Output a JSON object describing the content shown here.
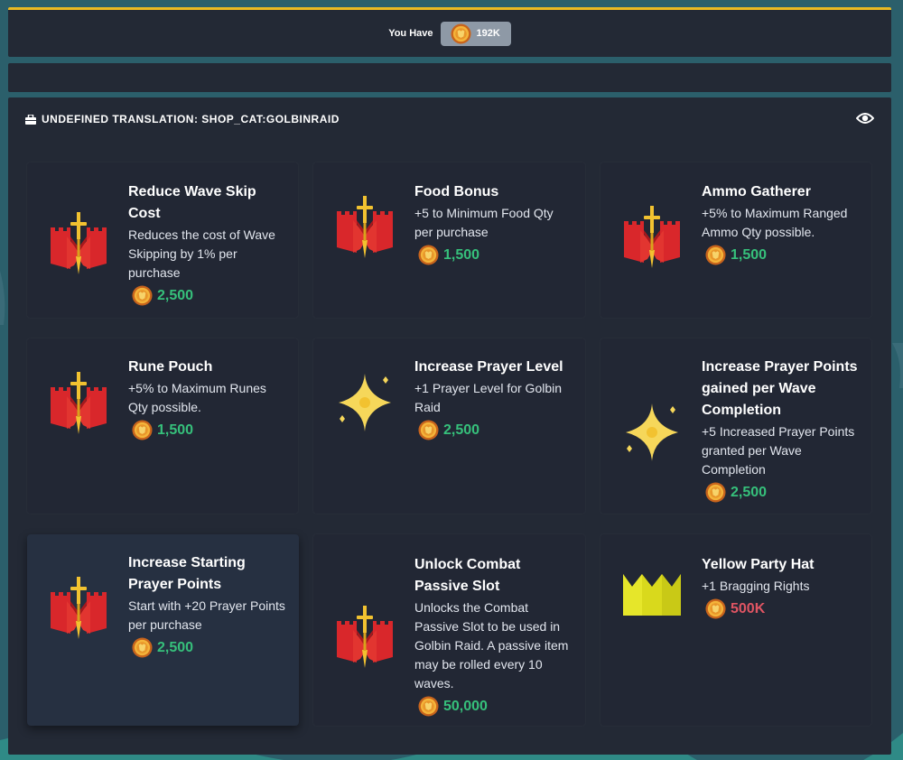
{
  "currency": {
    "label": "You Have",
    "amount": "192K",
    "icon": "gp-coin-icon"
  },
  "shop": {
    "category_title": "UNDEFINED TRANSLATION: SHOP_CAT:GOLBINRAID",
    "category_icon": "shop-bag-icon",
    "toggle_icon": "eye-icon",
    "colors": {
      "affordable": "#36c07b",
      "unaffordable": "#e05563",
      "accent": "#e8b923"
    },
    "items": [
      {
        "name": "Reduce Wave Skip Cost",
        "description": "Reduces the cost of Wave Skipping by 1% per purchase",
        "price": "2,500",
        "icon": "golbin-raid-icon",
        "affordable": true
      },
      {
        "name": "Food Bonus",
        "description": "+5 to Minimum Food Qty per purchase",
        "price": "1,500",
        "icon": "golbin-raid-icon",
        "affordable": true
      },
      {
        "name": "Ammo Gatherer",
        "description": "+5% to Maximum Ranged Ammo Qty possible.",
        "price": "1,500",
        "icon": "golbin-raid-icon",
        "affordable": true
      },
      {
        "name": "Rune Pouch",
        "description": "+5% to Maximum Runes Qty possible.",
        "price": "1,500",
        "icon": "golbin-raid-icon",
        "affordable": true
      },
      {
        "name": "Increase Prayer Level",
        "description": "+1 Prayer Level for Golbin Raid",
        "price": "2,500",
        "icon": "prayer-star-icon",
        "affordable": true
      },
      {
        "name": "Increase Prayer Points gained per Wave Completion",
        "description": "+5 Increased Prayer Points granted per Wave Completion",
        "price": "2,500",
        "icon": "prayer-star-icon",
        "affordable": true
      },
      {
        "name": "Increase Starting Prayer Points",
        "description": "Start with +20 Prayer Points per purchase",
        "price": "2,500",
        "icon": "golbin-raid-icon",
        "affordable": true
      },
      {
        "name": "Unlock Combat Passive Slot",
        "description": "Unlocks the Combat Passive Slot to be used in Golbin Raid. A passive item may be rolled every 10 waves.",
        "price": "50,000",
        "icon": "golbin-raid-icon",
        "affordable": true
      },
      {
        "name": "Yellow Party Hat",
        "description": "+1 Bragging Rights",
        "price": "500K",
        "icon": "yellow-party-hat-icon",
        "affordable": false
      }
    ]
  }
}
